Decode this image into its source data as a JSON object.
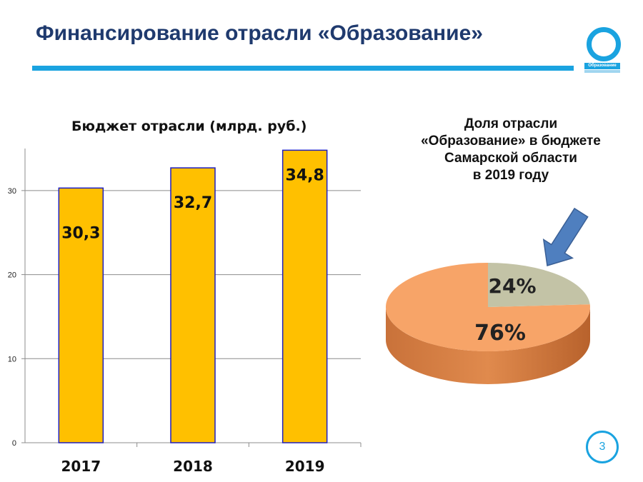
{
  "header": {
    "title": "Финансирование отрасли «Образование»"
  },
  "logo": {
    "label": "Образование",
    "icon": "o-ring-logo"
  },
  "page_number": "3",
  "colors": {
    "accent": "#1aa3e0",
    "title": "#1f3a6e",
    "bar": "#ffc000",
    "bar_edge": "#1f1fbf",
    "slice_main": "#f7a468",
    "slice_share": "#c3c3a6",
    "arrow": "#4f7fbf"
  },
  "chart_data": [
    {
      "type": "bar",
      "title": "Бюджет отрасли (млрд. руб.)",
      "categories": [
        "2017",
        "2018",
        "2019"
      ],
      "values": [
        30.3,
        32.7,
        34.8
      ],
      "value_labels": [
        "30,3",
        "32,7",
        "34,8"
      ],
      "ylim": [
        0,
        35
      ],
      "yticks": [
        "0",
        "10",
        "20",
        "30"
      ],
      "grid": true
    },
    {
      "type": "pie",
      "title_lines": [
        "Доля отрасли",
        "«Образование» в бюджете",
        "Самарской области",
        "в 2019 году"
      ],
      "slices": [
        {
          "label": "24%",
          "value": 24
        },
        {
          "label": "76%",
          "value": 76
        }
      ],
      "style": "3d",
      "annotation": "arrow pointing to 24% slice"
    }
  ]
}
